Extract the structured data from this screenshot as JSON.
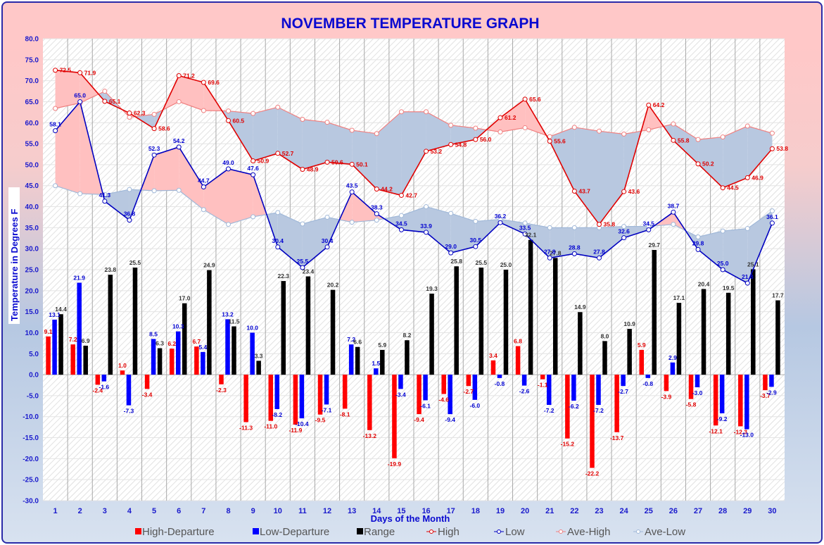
{
  "chart_data": {
    "type": "bar",
    "title": "NOVEMBER TEMPERATURE GRAPH",
    "xlabel": "Days of the Month",
    "ylabel": "Temperature  in  Degrees  F",
    "ylim": [
      -30,
      80
    ],
    "ytick_step": 5,
    "yticks": [
      "80.0",
      "75.0",
      "70.0",
      "65.0",
      "60.0",
      "55.0",
      "50.0",
      "45.0",
      "40.0",
      "35.0",
      "30.0",
      "25.0",
      "20.0",
      "15.0",
      "10.0",
      "5.0",
      "0.0",
      "-5.0",
      "-10.0",
      "-15.0",
      "-20.0",
      "-25.0",
      "-30.0"
    ],
    "categories": [
      "1",
      "2",
      "3",
      "4",
      "5",
      "6",
      "7",
      "8",
      "9",
      "10",
      "11",
      "12",
      "13",
      "14",
      "15",
      "16",
      "17",
      "18",
      "19",
      "20",
      "21",
      "22",
      "23",
      "24",
      "25",
      "26",
      "27",
      "28",
      "29",
      "30"
    ],
    "grid": true,
    "legend_position": "bottom",
    "colors": {
      "high_departure": "#ff0000",
      "low_departure": "#0000ff",
      "range": "#000000",
      "high": "#e00000",
      "low": "#0000c0",
      "ave_high": "#f08080",
      "ave_low": "#a0b8d8",
      "fill_above": "#ffc0c0",
      "fill_below": "#b8c8e0"
    },
    "series": [
      {
        "name": "High-Departure",
        "kind": "bar",
        "values": [
          9.1,
          7.2,
          -2.4,
          1.0,
          -3.4,
          6.2,
          6.7,
          -2.3,
          -11.3,
          -11.0,
          -11.9,
          -9.5,
          -8.1,
          -13.2,
          -19.9,
          -9.4,
          -4.6,
          -2.7,
          3.4,
          6.8,
          -1.1,
          -15.2,
          -22.2,
          -13.7,
          5.9,
          -3.9,
          -5.8,
          -12.1,
          -12.3,
          -3.7
        ]
      },
      {
        "name": "Low-Departure",
        "kind": "bar",
        "values": [
          13.1,
          21.9,
          -1.6,
          -7.3,
          8.5,
          10.3,
          5.4,
          13.2,
          10.0,
          -8.2,
          -10.4,
          -7.1,
          7.2,
          1.5,
          -3.4,
          -6.1,
          -9.4,
          -6.0,
          -0.8,
          -2.6,
          -7.2,
          -6.2,
          -7.2,
          -2.7,
          -0.8,
          2.9,
          -3.0,
          -9.2,
          -13.0,
          -2.9
        ]
      },
      {
        "name": "Range",
        "kind": "bar",
        "values": [
          14.4,
          6.9,
          23.8,
          25.5,
          6.3,
          17.0,
          24.9,
          11.5,
          3.3,
          22.3,
          23.4,
          20.2,
          6.6,
          5.9,
          8.2,
          19.3,
          25.8,
          25.5,
          25.0,
          32.1,
          27.8,
          14.9,
          8.0,
          10.9,
          29.7,
          17.1,
          20.4,
          19.5,
          25.1,
          17.7
        ]
      },
      {
        "name": "High",
        "kind": "line",
        "values": [
          72.5,
          71.9,
          65.1,
          62.3,
          58.6,
          71.2,
          69.6,
          60.5,
          50.9,
          52.7,
          48.9,
          50.6,
          50.1,
          44.2,
          42.7,
          53.2,
          54.8,
          56.0,
          61.2,
          65.6,
          55.6,
          43.7,
          35.8,
          43.6,
          64.2,
          55.8,
          50.2,
          44.5,
          46.9,
          53.8
        ]
      },
      {
        "name": "Low",
        "kind": "line",
        "values": [
          58.1,
          65.0,
          41.3,
          36.8,
          52.3,
          54.2,
          44.7,
          49.0,
          47.6,
          30.4,
          25.5,
          30.4,
          43.5,
          38.3,
          34.5,
          33.9,
          29.0,
          30.5,
          36.2,
          33.5,
          27.8,
          28.8,
          27.8,
          32.6,
          34.5,
          38.7,
          29.8,
          25.0,
          21.8,
          36.1
        ]
      },
      {
        "name": "Ave-High",
        "kind": "line",
        "values": [
          63.4,
          64.7,
          67.5,
          61.3,
          62.0,
          65.0,
          62.9,
          62.8,
          62.2,
          63.7,
          60.8,
          60.1,
          58.2,
          57.4,
          62.6,
          62.6,
          59.4,
          58.7,
          57.8,
          58.8,
          56.7,
          58.9,
          58.0,
          57.3,
          58.3,
          59.7,
          56.0,
          56.6,
          59.2,
          57.5
        ]
      },
      {
        "name": "Ave-Low",
        "kind": "line",
        "values": [
          45.0,
          43.1,
          42.9,
          44.1,
          43.8,
          43.9,
          39.3,
          35.8,
          37.6,
          38.6,
          35.9,
          37.5,
          36.3,
          36.8,
          37.9,
          40.0,
          38.4,
          36.5,
          37.0,
          36.1,
          35.0,
          35.0,
          35.0,
          35.3,
          35.3,
          35.8,
          32.8,
          34.2,
          34.8,
          39.0
        ]
      }
    ],
    "legend": [
      {
        "label": "High-Departure",
        "marker": "square",
        "color": "#ff0000"
      },
      {
        "label": "Low-Departure",
        "marker": "square",
        "color": "#0000ff"
      },
      {
        "label": "Range",
        "marker": "square",
        "color": "#000000"
      },
      {
        "label": "High",
        "marker": "line-circle",
        "color": "#e00000"
      },
      {
        "label": "Low",
        "marker": "line-circle",
        "color": "#0000c0"
      },
      {
        "label": "Ave-High",
        "marker": "line-circle",
        "color": "#f08080"
      },
      {
        "label": "Ave-Low",
        "marker": "line-circle",
        "color": "#a0b8d8"
      }
    ]
  }
}
